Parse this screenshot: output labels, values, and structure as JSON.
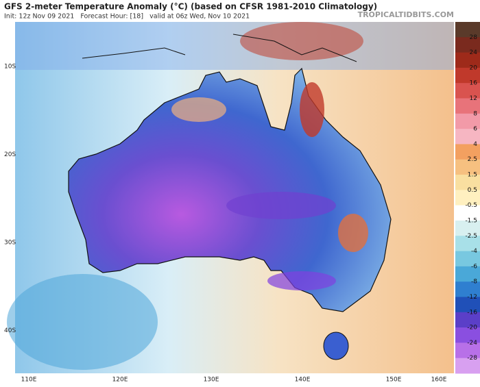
{
  "header": {
    "title": "GFS 2-meter Temperature Anomaly (°C) (based on CFSR 1981-2010 Climatology)",
    "subtitle": "Init: 12z Nov 09 2021   Forecast Hour: [18]   valid at 06z Wed, Nov 10 2021",
    "site": "TROPICALTIDBITS.COM"
  },
  "map": {
    "latitude_labels": [
      "10S",
      "20S",
      "30S",
      "40S"
    ],
    "longitude_labels": [
      "110E",
      "120E",
      "130E",
      "140E",
      "150E",
      "160E"
    ]
  },
  "colorbar": {
    "labels": [
      "28",
      "24",
      "20",
      "16",
      "12",
      "8",
      "6",
      "4",
      "2.5",
      "1.5",
      "0.5",
      "-0.5",
      "-1.5",
      "-2.5",
      "-4",
      "-6",
      "-8",
      "-12",
      "-16",
      "-20",
      "-24",
      "-28"
    ]
  }
}
